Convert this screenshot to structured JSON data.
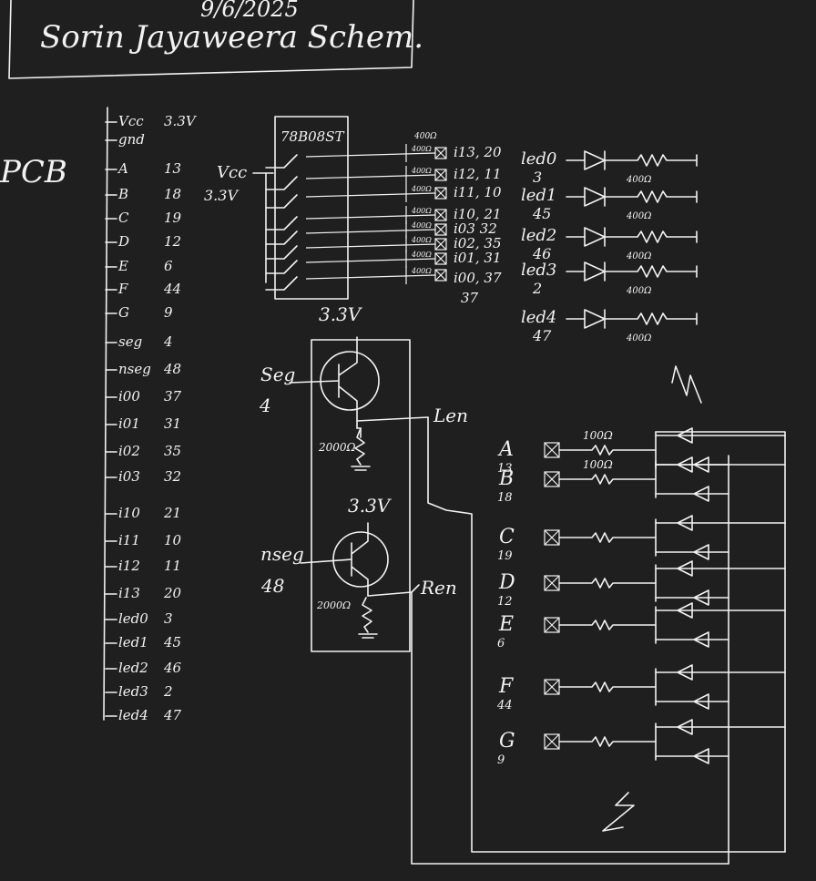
{
  "title_block": {
    "date": "9/6/2025",
    "title": "Sorin Jayaweera Schem."
  },
  "pcb_label": "PCB",
  "header_pins": [
    {
      "name": "Vcc",
      "pin": "3.3V"
    },
    {
      "name": "gnd",
      "pin": ""
    },
    {
      "name": "A",
      "pin": "13"
    },
    {
      "name": "B",
      "pin": "18"
    },
    {
      "name": "C",
      "pin": "19"
    },
    {
      "name": "D",
      "pin": "12"
    },
    {
      "name": "E",
      "pin": "6"
    },
    {
      "name": "F",
      "pin": "44"
    },
    {
      "name": "G",
      "pin": "9"
    },
    {
      "name": "seg",
      "pin": "4"
    },
    {
      "name": "nseg",
      "pin": "48"
    },
    {
      "name": "i00",
      "pin": "37"
    },
    {
      "name": "i01",
      "pin": "31"
    },
    {
      "name": "i02",
      "pin": "35"
    },
    {
      "name": "i03",
      "pin": "32"
    },
    {
      "name": "i10",
      "pin": "21"
    },
    {
      "name": "i11",
      "pin": "10"
    },
    {
      "name": "i12",
      "pin": "11"
    },
    {
      "name": "i13",
      "pin": "20"
    },
    {
      "name": "led0",
      "pin": "3"
    },
    {
      "name": "led1",
      "pin": "45"
    },
    {
      "name": "led2",
      "pin": "46"
    },
    {
      "name": "led3",
      "pin": "2"
    },
    {
      "name": "led4",
      "pin": "47"
    }
  ],
  "switch_block": {
    "chip": "78B08ST",
    "vcc_label": "Vcc",
    "vcc_value": "3.3V",
    "resistor_label": "400Ω",
    "outputs": [
      "i13, 20",
      "i12, 11",
      "i11, 10",
      "i10, 21",
      "i03 32",
      "i02, 35",
      "i01, 31",
      "i00, 37"
    ]
  },
  "leds": [
    {
      "name": "led0",
      "pin": "3",
      "res": "400Ω"
    },
    {
      "name": "led1",
      "pin": "45",
      "res": "400Ω"
    },
    {
      "name": "led2",
      "pin": "46",
      "res": "400Ω"
    },
    {
      "name": "led3",
      "pin": "2",
      "res": "400Ω"
    },
    {
      "name": "led4",
      "pin": "47",
      "res": "400Ω"
    }
  ],
  "transistors": [
    {
      "rail": "3.3V",
      "input": "Seg",
      "input_pin": "4",
      "res": "2000Ω",
      "output": "Len"
    },
    {
      "rail": "3.3V",
      "input": "nseg",
      "input_pin": "48",
      "res": "2000Ω",
      "output": "Ren"
    }
  ],
  "segments": [
    {
      "name": "A",
      "pin": "13",
      "res": "100Ω"
    },
    {
      "name": "B",
      "pin": "18",
      "res": "100Ω"
    },
    {
      "name": "C",
      "pin": "19",
      "res": ""
    },
    {
      "name": "D",
      "pin": "12",
      "res": ""
    },
    {
      "name": "E",
      "pin": "6",
      "res": ""
    },
    {
      "name": "F",
      "pin": "44",
      "res": ""
    },
    {
      "name": "G",
      "pin": "9",
      "res": ""
    }
  ]
}
